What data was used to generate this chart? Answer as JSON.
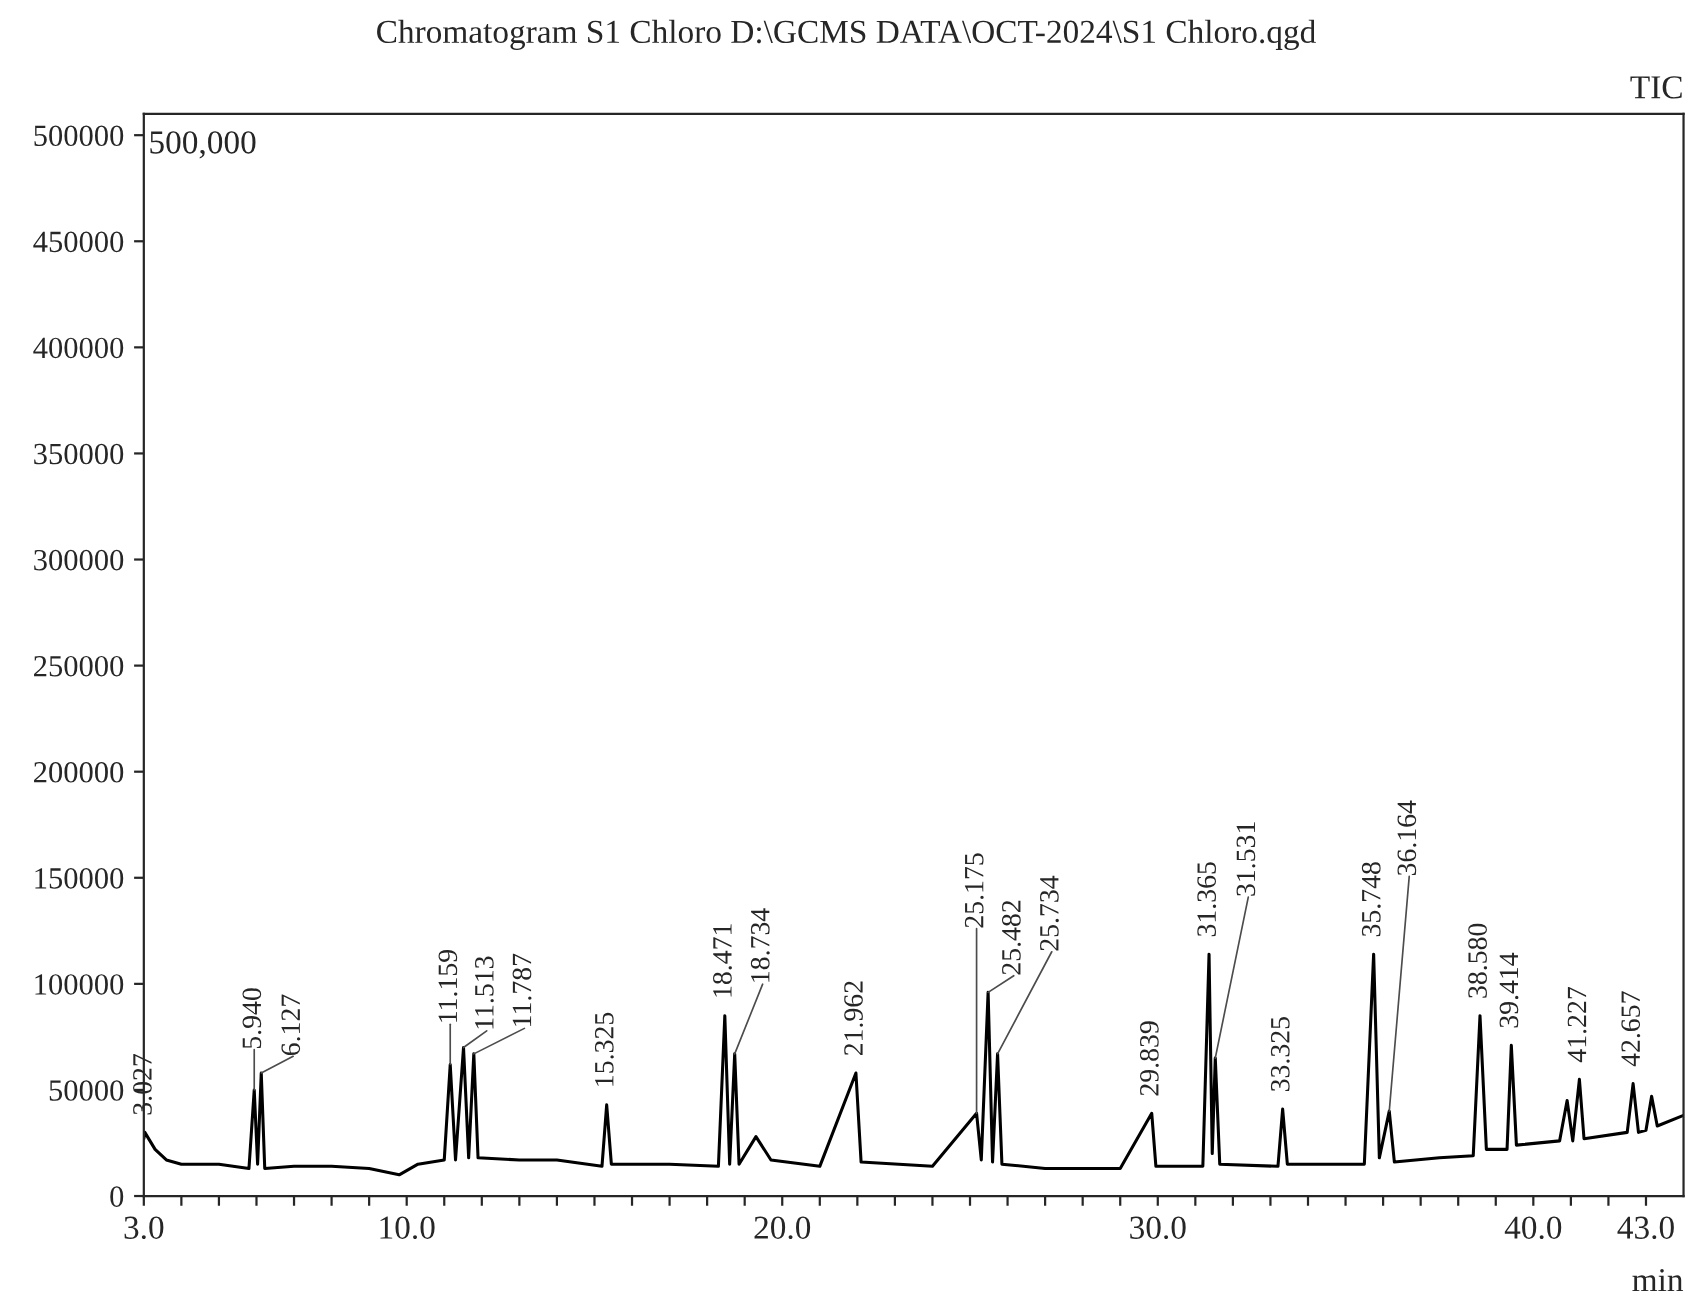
{
  "chart_data": {
    "type": "line",
    "title": "Chromatogram S1 Chloro D:\\GCMS DATA\\OCT-2024\\S1 Chloro.qgd",
    "xlabel": "min",
    "x": [
      3.0,
      3.027,
      3.3,
      3.6,
      4.0,
      5.0,
      5.8,
      5.94,
      6.03,
      6.127,
      6.22,
      7.0,
      8.0,
      9.0,
      9.8,
      10.3,
      11.0,
      11.159,
      11.3,
      11.513,
      11.65,
      11.787,
      11.9,
      13.0,
      14.0,
      15.2,
      15.325,
      15.45,
      17.0,
      18.3,
      18.471,
      18.6,
      18.734,
      18.85,
      19.3,
      19.7,
      21.0,
      21.962,
      22.1,
      24.0,
      25.175,
      25.3,
      25.482,
      25.6,
      25.734,
      25.85,
      27.0,
      29.0,
      29.839,
      29.95,
      31.2,
      31.365,
      31.45,
      31.531,
      31.65,
      33.2,
      33.325,
      33.45,
      35.5,
      35.748,
      35.9,
      36.164,
      36.3,
      37.5,
      38.4,
      38.58,
      38.75,
      39.3,
      39.414,
      39.55,
      40.7,
      40.9,
      41.05,
      41.227,
      41.35,
      42.5,
      42.657,
      42.8,
      43.0,
      43.15,
      43.3,
      44.0
    ],
    "series": [
      {
        "color": "#000000",
        "values": [
          27000,
          30000,
          22000,
          17000,
          15000,
          15000,
          13000,
          50000,
          15000,
          58000,
          13000,
          14000,
          14000,
          13000,
          10000,
          15000,
          17000,
          62000,
          17000,
          70000,
          18000,
          67000,
          18000,
          17000,
          17000,
          14000,
          43000,
          15000,
          15000,
          14000,
          85000,
          15000,
          67000,
          15000,
          28000,
          17000,
          14000,
          58000,
          16000,
          14000,
          39000,
          17000,
          96000,
          16000,
          67000,
          15000,
          13000,
          13000,
          39000,
          14000,
          14000,
          114000,
          20000,
          65000,
          15000,
          14000,
          41000,
          15000,
          15000,
          114000,
          18000,
          40000,
          16000,
          18000,
          19000,
          85000,
          22000,
          22000,
          71000,
          24000,
          26000,
          45000,
          26000,
          55000,
          27000,
          30000,
          53000,
          30000,
          31000,
          47000,
          33000,
          38000
        ]
      }
    ],
    "xlim": [
      3.0,
      44.0
    ],
    "ylim": [
      0,
      510000
    ],
    "xticks": [
      {
        "value": 3.0,
        "label": "3.0"
      },
      {
        "value": 4,
        "label": null
      },
      {
        "value": 5,
        "label": null
      },
      {
        "value": 6,
        "label": null
      },
      {
        "value": 7,
        "label": null
      },
      {
        "value": 8,
        "label": null
      },
      {
        "value": 9,
        "label": null
      },
      {
        "value": 10.0,
        "label": "10.0"
      },
      {
        "value": 11,
        "label": null
      },
      {
        "value": 12,
        "label": null
      },
      {
        "value": 13,
        "label": null
      },
      {
        "value": 14,
        "label": null
      },
      {
        "value": 15,
        "label": null
      },
      {
        "value": 16,
        "label": null
      },
      {
        "value": 17,
        "label": null
      },
      {
        "value": 18,
        "label": null
      },
      {
        "value": 19,
        "label": null
      },
      {
        "value": 20.0,
        "label": "20.0"
      },
      {
        "value": 21,
        "label": null
      },
      {
        "value": 22,
        "label": null
      },
      {
        "value": 23,
        "label": null
      },
      {
        "value": 24,
        "label": null
      },
      {
        "value": 25,
        "label": null
      },
      {
        "value": 26,
        "label": null
      },
      {
        "value": 27,
        "label": null
      },
      {
        "value": 28,
        "label": null
      },
      {
        "value": 29,
        "label": null
      },
      {
        "value": 30.0,
        "label": "30.0"
      },
      {
        "value": 31,
        "label": null
      },
      {
        "value": 32,
        "label": null
      },
      {
        "value": 33,
        "label": null
      },
      {
        "value": 34,
        "label": null
      },
      {
        "value": 35,
        "label": null
      },
      {
        "value": 36,
        "label": null
      },
      {
        "value": 37,
        "label": null
      },
      {
        "value": 38,
        "label": null
      },
      {
        "value": 39,
        "label": null
      },
      {
        "value": 40.0,
        "label": "40.0"
      },
      {
        "value": 41,
        "label": null
      },
      {
        "value": 42,
        "label": null
      },
      {
        "value": 43.0,
        "label": "43.0"
      }
    ],
    "yticks": [
      0,
      50000,
      100000,
      150000,
      200000,
      250000,
      300000,
      350000,
      400000,
      450000,
      500000
    ],
    "grid": false,
    "legend": false,
    "marker": "none",
    "line_style": "solid",
    "annotations": [
      "500,000",
      "TIC",
      {
        "text": "3.027",
        "x": 3.027,
        "y": 30000
      },
      {
        "text": "5.940",
        "x": 5.94,
        "y": 50000
      },
      {
        "text": "6.127",
        "x": 6.127,
        "y": 58000
      },
      {
        "text": "11.159",
        "x": 11.159,
        "y": 62000
      },
      {
        "text": "11.513",
        "x": 11.513,
        "y": 70000
      },
      {
        "text": "11.787",
        "x": 11.787,
        "y": 67000
      },
      {
        "text": "15.325",
        "x": 15.325,
        "y": 43000
      },
      {
        "text": "18.471",
        "x": 18.471,
        "y": 85000
      },
      {
        "text": "18.734",
        "x": 18.734,
        "y": 67000
      },
      {
        "text": "21.962",
        "x": 21.962,
        "y": 58000
      },
      {
        "text": "25.175",
        "x": 25.175,
        "y": 39000
      },
      {
        "text": "25.482",
        "x": 25.482,
        "y": 96000
      },
      {
        "text": "25.734",
        "x": 25.734,
        "y": 67000
      },
      {
        "text": "29.839",
        "x": 29.839,
        "y": 39000
      },
      {
        "text": "31.365",
        "x": 31.365,
        "y": 114000
      },
      {
        "text": "31.531",
        "x": 31.531,
        "y": 65000
      },
      {
        "text": "33.325",
        "x": 33.325,
        "y": 41000
      },
      {
        "text": "35.748",
        "x": 35.748,
        "y": 114000
      },
      {
        "text": "36.164",
        "x": 36.164,
        "y": 40000
      },
      {
        "text": "38.580",
        "x": 38.58,
        "y": 85000
      },
      {
        "text": "39.414",
        "x": 39.414,
        "y": 71000
      },
      {
        "text": "41.227",
        "x": 41.227,
        "y": 55000
      },
      {
        "text": "42.657",
        "x": 42.657,
        "y": 53000
      }
    ]
  }
}
